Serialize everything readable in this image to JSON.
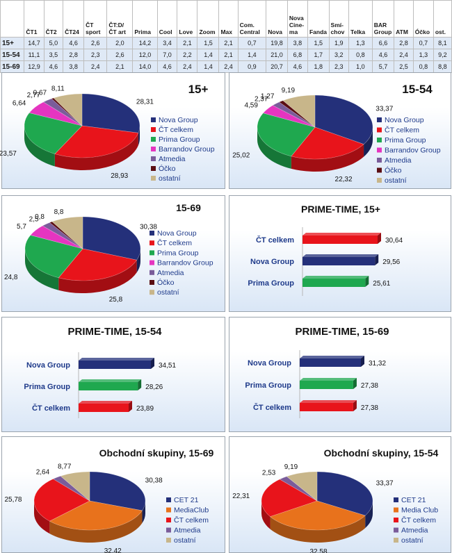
{
  "colors": {
    "nova": "#24307a",
    "ct": "#e8141b",
    "prima": "#1fa84f",
    "barrandov": "#e535c0",
    "atmedia": "#7a5c9a",
    "ocko": "#5a0d12",
    "ostatni": "#c8b68a",
    "cet21": "#24307a",
    "mediaclub": "#e8721c"
  },
  "table": {
    "columns": [
      "ČT1",
      "ČT2",
      "ČT24",
      "ČT sport",
      "ČT:D/ČT art",
      "Prima",
      "Cool",
      "Love",
      "Zoom",
      "Max",
      "Com. Central",
      "Nova",
      "Nova Cine-ma",
      "Fanda",
      "Smí-chov",
      "Telka",
      "BAR Group",
      "ATM",
      "Óčko",
      "ost."
    ],
    "rows": [
      {
        "group": "15+",
        "values": [
          "14,7",
          "5,0",
          "4,6",
          "2,6",
          "2,0",
          "14,2",
          "3,4",
          "2,1",
          "1,5",
          "2,1",
          "0,7",
          "19,8",
          "3,8",
          "1,5",
          "1,9",
          "1,3",
          "6,6",
          "2,8",
          "0,7",
          "8,1"
        ]
      },
      {
        "group": "15-54",
        "values": [
          "11,1",
          "3,5",
          "2,8",
          "2,3",
          "2,6",
          "12,0",
          "7,0",
          "2,2",
          "1,4",
          "2,1",
          "1,4",
          "21,0",
          "6,8",
          "1,7",
          "3,2",
          "0,8",
          "4,6",
          "2,4",
          "1,3",
          "9,2"
        ]
      },
      {
        "group": "15-69",
        "values": [
          "12,9",
          "4,6",
          "3,8",
          "2,4",
          "2,1",
          "14,0",
          "4,6",
          "2,4",
          "1,4",
          "2,4",
          "0,9",
          "20,7",
          "4,6",
          "1,8",
          "2,3",
          "1,0",
          "5,7",
          "2,5",
          "0,8",
          "8,8"
        ]
      }
    ]
  },
  "chart_data": [
    {
      "type": "pie",
      "title": "15+",
      "categories": [
        "Nova Group",
        "ČT celkem",
        "Prima Group",
        "Barrandov Group",
        "Atmedia",
        "Óčko",
        "ostatní"
      ],
      "values": [
        28.31,
        28.93,
        23.57,
        6.64,
        2.77,
        0.67,
        8.11
      ],
      "labels": [
        "28,31",
        "28,93",
        "23,57",
        "6,64",
        "2,77",
        "0,67",
        "8,11"
      ],
      "colors": [
        "nova",
        "ct",
        "prima",
        "barrandov",
        "atmedia",
        "ocko",
        "ostatni"
      ],
      "legend": "right"
    },
    {
      "type": "pie",
      "title": "15-54",
      "categories": [
        "Nova Group",
        "ČT celkem",
        "Prima Group",
        "Barrandov Group",
        "Atmedia",
        "Óčko",
        "ostatní"
      ],
      "values": [
        33.37,
        22.32,
        25.02,
        4.59,
        2.37,
        1.27,
        9.19
      ],
      "labels": [
        "33,37",
        "22,32",
        "25,02",
        "4,59",
        "2,37",
        "1,27",
        "9,19"
      ],
      "colors": [
        "nova",
        "ct",
        "prima",
        "barrandov",
        "atmedia",
        "ocko",
        "ostatni"
      ],
      "legend": "right"
    },
    {
      "type": "pie",
      "title": "15-69",
      "categories": [
        "Nova Group",
        "ČT celkem",
        "Prima Group",
        "Barrandov Group",
        "Atmedia",
        "Óčko",
        "ostatní"
      ],
      "values": [
        30.38,
        25.8,
        24.8,
        5.7,
        2.5,
        0.8,
        8.8
      ],
      "labels": [
        "30,38",
        "25,8",
        "24,8",
        "5,7",
        "2,5",
        "0,8",
        "8,8"
      ],
      "colors": [
        "nova",
        "ct",
        "prima",
        "barrandov",
        "atmedia",
        "ocko",
        "ostatni"
      ],
      "legend": "right"
    },
    {
      "type": "bar",
      "orientation": "horizontal",
      "title": "PRIME-TIME, 15+",
      "categories": [
        "ČT celkem",
        "Nova Group",
        "Prima Group"
      ],
      "values": [
        30.64,
        29.56,
        25.61
      ],
      "labels": [
        "30,64",
        "29,56",
        "25,61"
      ],
      "colors": [
        "ct",
        "nova",
        "prima"
      ]
    },
    {
      "type": "bar",
      "orientation": "horizontal",
      "title": "PRIME-TIME, 15-54",
      "categories": [
        "Nova Group",
        "Prima Group",
        "ČT celkem"
      ],
      "values": [
        34.51,
        28.26,
        23.89
      ],
      "labels": [
        "34,51",
        "28,26",
        "23,89"
      ],
      "colors": [
        "nova",
        "prima",
        "ct"
      ]
    },
    {
      "type": "bar",
      "orientation": "horizontal",
      "title": "PRIME-TIME, 15-69",
      "categories": [
        "Nova Group",
        "Prima Group",
        "ČT celkem"
      ],
      "values": [
        31.32,
        27.38,
        27.38
      ],
      "labels": [
        "31,32",
        "27,38",
        "27,38"
      ],
      "colors": [
        "nova",
        "prima",
        "ct"
      ]
    },
    {
      "type": "pie",
      "title": "Obchodní skupiny, 15-69",
      "categories": [
        "CET 21",
        "MediaClub",
        "ČT celkem",
        "Atmedia",
        "ostatní"
      ],
      "values": [
        30.38,
        32.42,
        25.78,
        2.64,
        8.77
      ],
      "labels": [
        "30,38",
        "32,42",
        "25,78",
        "2,64",
        "8,77"
      ],
      "colors": [
        "cet21",
        "mediaclub",
        "ct",
        "atmedia",
        "ostatni"
      ],
      "legend": "bottom-right"
    },
    {
      "type": "pie",
      "title": "Obchodní skupiny, 15-54",
      "categories": [
        "CET 21",
        "Media Club",
        "ČT celkem",
        "Atmedia",
        "ostatní"
      ],
      "values": [
        33.37,
        32.58,
        22.31,
        2.53,
        9.19
      ],
      "labels": [
        "33,37",
        "32,58",
        "22,31",
        "2,53",
        "9,19"
      ],
      "colors": [
        "cet21",
        "mediaclub",
        "ct",
        "atmedia",
        "ostatni"
      ],
      "legend": "bottom-right"
    }
  ]
}
